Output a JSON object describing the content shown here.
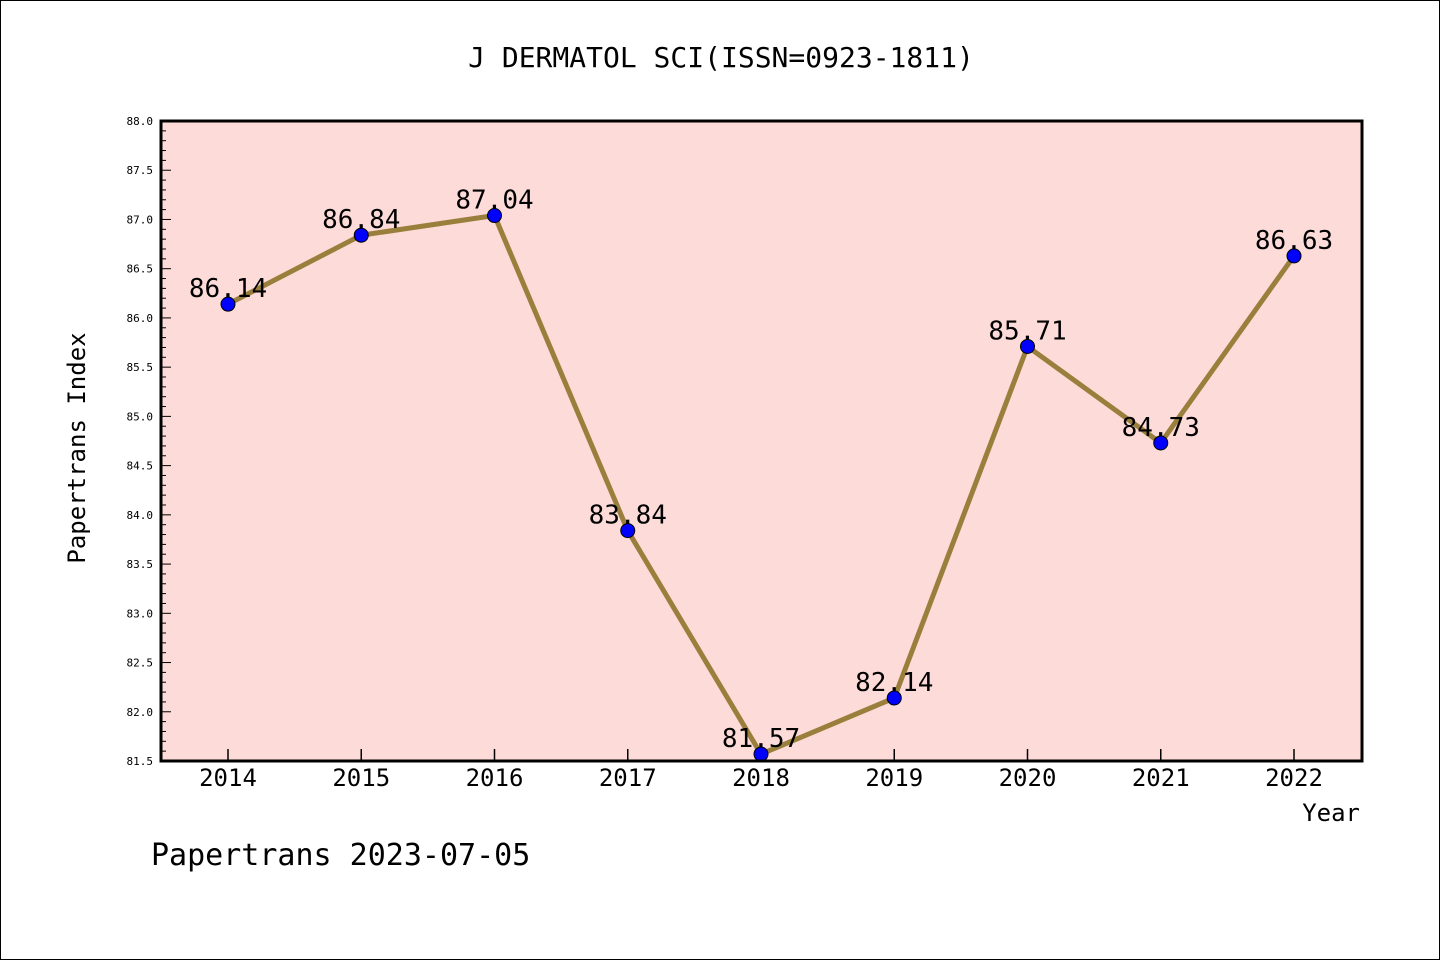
{
  "chart_data": {
    "type": "line",
    "title": "J DERMATOL SCI(ISSN=0923-1811)",
    "xlabel": "Year",
    "ylabel": "Papertrans Index",
    "categories": [
      "2014",
      "2015",
      "2016",
      "2017",
      "2018",
      "2019",
      "2020",
      "2021",
      "2022"
    ],
    "series": [
      {
        "values": [
          86.14,
          86.84,
          87.04,
          83.84,
          81.57,
          82.14,
          85.71,
          84.73,
          86.63
        ]
      }
    ],
    "data_labels": [
      "86.14",
      "86.84",
      "87.04",
      "83.84",
      "81.57",
      "82.14",
      "85.71",
      "84.73",
      "86.63"
    ],
    "ylim": [
      81.5,
      88.0
    ],
    "yticks": [
      "81.5",
      "82.0",
      "82.5",
      "83.0",
      "83.5",
      "84.0",
      "84.5",
      "85.0",
      "85.5",
      "86.0",
      "86.5",
      "87.0",
      "87.5",
      "88.0"
    ],
    "grid": false,
    "colors": {
      "plot_background": "#fddbd9",
      "line": "#9a7f3c",
      "marker": "#0000ff"
    }
  },
  "footer": "Papertrans 2023-07-05"
}
